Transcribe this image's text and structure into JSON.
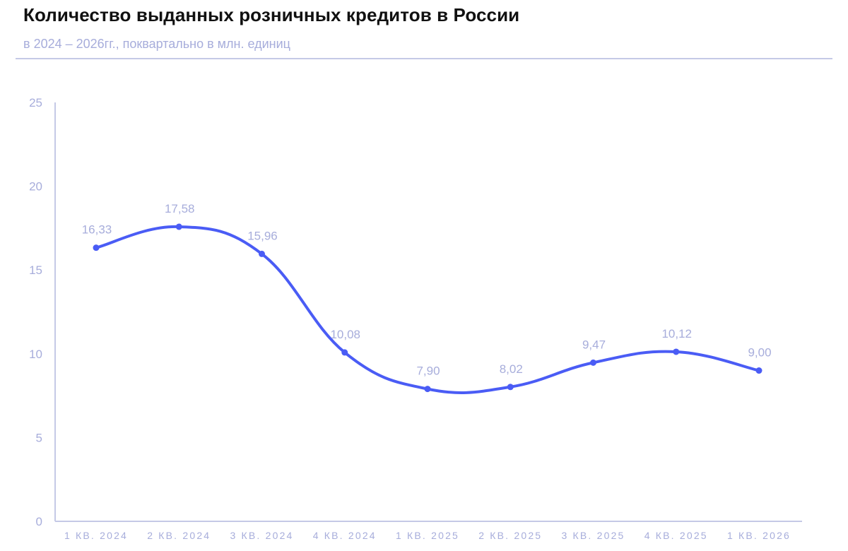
{
  "header": {
    "title": "Количество выданных розничных кредитов в России",
    "subtitle": "в 2024 – 2026гг., поквартально в млн. единиц"
  },
  "colors": {
    "line": "#4a5cf5",
    "axis": "#c5c9e6",
    "label": "#a7addb",
    "title": "#111111"
  },
  "chart_data": {
    "type": "line",
    "title": "Количество выданных розничных кредитов в России",
    "subtitle": "в 2024 – 2026гг., поквартально в млн. единиц",
    "xlabel": "",
    "ylabel": "",
    "categories": [
      "1 КВ. 2024",
      "2 КВ. 2024",
      "3 КВ. 2024",
      "4 КВ. 2024",
      "1 КВ. 2025",
      "2 КВ. 2025",
      "3 КВ. 2025",
      "4 КВ. 2025",
      "1 КВ. 2026"
    ],
    "series": [
      {
        "name": "Количество выданных розничных кредитов, млн. единиц",
        "values": [
          16.33,
          17.58,
          15.96,
          10.08,
          7.9,
          8.02,
          9.47,
          10.12,
          9.0
        ],
        "labels": [
          "16,33",
          "17,58",
          "15,96",
          "10,08",
          "7,90",
          "8,02",
          "9,47",
          "10,12",
          "9,00"
        ]
      }
    ],
    "yticks": [
      "0",
      "5",
      "10",
      "15",
      "20",
      "25"
    ],
    "ylim": [
      0,
      25
    ],
    "grid": false,
    "legend": "none",
    "smooth": true,
    "markers": true
  }
}
